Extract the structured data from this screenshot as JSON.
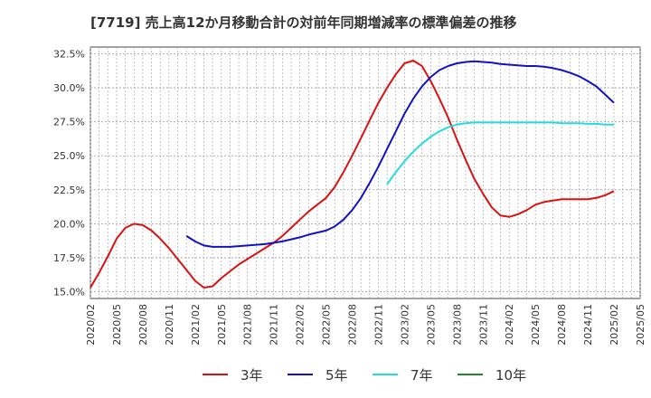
{
  "chart_data": {
    "type": "line",
    "title": "[7719]  売上高12か月移動合計の対前年同期増減率の標準偏差の推移",
    "xlabel": "",
    "ylabel": "",
    "ylim": [
      14.5,
      33.0
    ],
    "grid": true,
    "legend_position": "bottom",
    "y_ticks": [
      "32.5%",
      "30.0%",
      "27.5%",
      "25.0%",
      "22.5%",
      "20.0%",
      "17.5%",
      "15.0%"
    ],
    "y_tick_values": [
      32.5,
      30.0,
      27.5,
      25.0,
      22.5,
      20.0,
      17.5,
      15.0
    ],
    "x_ticks": [
      "2020/02",
      "2020/05",
      "2020/08",
      "2020/11",
      "2021/02",
      "2021/05",
      "2021/08",
      "2021/11",
      "2022/02",
      "2022/05",
      "2022/08",
      "2022/11",
      "2023/02",
      "2023/05",
      "2023/08",
      "2023/11",
      "2024/02",
      "2024/05",
      "2024/08",
      "2024/11",
      "2025/02",
      "2025/05"
    ],
    "x_start": "2020/02",
    "x_end": "2025/05",
    "series": [
      {
        "name": "3年",
        "color": "#dd1111",
        "points": [
          [
            "2020/02",
            15.3
          ],
          [
            "2020/03",
            16.4
          ],
          [
            "2020/04",
            17.6
          ],
          [
            "2020/05",
            18.9
          ],
          [
            "2020/06",
            19.7
          ],
          [
            "2020/07",
            20.0
          ],
          [
            "2020/08",
            19.9
          ],
          [
            "2020/09",
            19.5
          ],
          [
            "2020/10",
            18.9
          ],
          [
            "2020/11",
            18.2
          ],
          [
            "2020/12",
            17.4
          ],
          [
            "2021/01",
            16.6
          ],
          [
            "2021/02",
            15.8
          ],
          [
            "2021/03",
            15.3
          ],
          [
            "2021/04",
            15.4
          ],
          [
            "2021/05",
            16.0
          ],
          [
            "2021/06",
            16.5
          ],
          [
            "2021/07",
            17.0
          ],
          [
            "2021/08",
            17.4
          ],
          [
            "2021/09",
            17.8
          ],
          [
            "2021/10",
            18.2
          ],
          [
            "2021/11",
            18.6
          ],
          [
            "2021/12",
            19.1
          ],
          [
            "2022/01",
            19.7
          ],
          [
            "2022/02",
            20.3
          ],
          [
            "2022/03",
            20.9
          ],
          [
            "2022/04",
            21.4
          ],
          [
            "2022/05",
            21.9
          ],
          [
            "2022/06",
            22.7
          ],
          [
            "2022/07",
            23.8
          ],
          [
            "2022/08",
            25.0
          ],
          [
            "2022/09",
            26.3
          ],
          [
            "2022/10",
            27.6
          ],
          [
            "2022/11",
            28.9
          ],
          [
            "2022/12",
            30.0
          ],
          [
            "2023/01",
            31.0
          ],
          [
            "2023/02",
            31.8
          ],
          [
            "2023/03",
            32.0
          ],
          [
            "2023/04",
            31.6
          ],
          [
            "2023/05",
            30.5
          ],
          [
            "2023/06",
            29.2
          ],
          [
            "2023/07",
            27.8
          ],
          [
            "2023/08",
            26.2
          ],
          [
            "2023/09",
            24.7
          ],
          [
            "2023/10",
            23.3
          ],
          [
            "2023/11",
            22.2
          ],
          [
            "2023/12",
            21.2
          ],
          [
            "2024/01",
            20.6
          ],
          [
            "2024/02",
            20.5
          ],
          [
            "2024/03",
            20.7
          ],
          [
            "2024/04",
            21.0
          ],
          [
            "2024/05",
            21.4
          ],
          [
            "2024/06",
            21.6
          ],
          [
            "2024/07",
            21.7
          ],
          [
            "2024/08",
            21.8
          ],
          [
            "2024/09",
            21.8
          ],
          [
            "2024/10",
            21.8
          ],
          [
            "2024/11",
            21.8
          ],
          [
            "2024/12",
            21.9
          ],
          [
            "2025/01",
            22.1
          ],
          [
            "2025/02",
            22.4
          ]
        ]
      },
      {
        "name": "5年",
        "color": "#1111cc",
        "points": [
          [
            "2021/01",
            19.1
          ],
          [
            "2021/02",
            18.7
          ],
          [
            "2021/03",
            18.4
          ],
          [
            "2021/04",
            18.3
          ],
          [
            "2021/05",
            18.3
          ],
          [
            "2021/06",
            18.3
          ],
          [
            "2021/07",
            18.35
          ],
          [
            "2021/08",
            18.4
          ],
          [
            "2021/09",
            18.45
          ],
          [
            "2021/10",
            18.5
          ],
          [
            "2021/11",
            18.6
          ],
          [
            "2021/12",
            18.7
          ],
          [
            "2022/01",
            18.85
          ],
          [
            "2022/02",
            19.0
          ],
          [
            "2022/03",
            19.2
          ],
          [
            "2022/04",
            19.35
          ],
          [
            "2022/05",
            19.5
          ],
          [
            "2022/06",
            19.8
          ],
          [
            "2022/07",
            20.3
          ],
          [
            "2022/08",
            21.0
          ],
          [
            "2022/09",
            21.9
          ],
          [
            "2022/10",
            23.0
          ],
          [
            "2022/11",
            24.2
          ],
          [
            "2022/12",
            25.5
          ],
          [
            "2023/01",
            26.8
          ],
          [
            "2023/02",
            28.1
          ],
          [
            "2023/03",
            29.2
          ],
          [
            "2023/04",
            30.1
          ],
          [
            "2023/05",
            30.8
          ],
          [
            "2023/06",
            31.3
          ],
          [
            "2023/07",
            31.6
          ],
          [
            "2023/08",
            31.8
          ],
          [
            "2023/09",
            31.9
          ],
          [
            "2023/10",
            31.95
          ],
          [
            "2023/11",
            31.9
          ],
          [
            "2023/12",
            31.85
          ],
          [
            "2024/01",
            31.75
          ],
          [
            "2024/02",
            31.7
          ],
          [
            "2024/03",
            31.65
          ],
          [
            "2024/04",
            31.6
          ],
          [
            "2024/05",
            31.6
          ],
          [
            "2024/06",
            31.55
          ],
          [
            "2024/07",
            31.45
          ],
          [
            "2024/08",
            31.3
          ],
          [
            "2024/09",
            31.1
          ],
          [
            "2024/10",
            30.85
          ],
          [
            "2024/11",
            30.5
          ],
          [
            "2024/12",
            30.1
          ],
          [
            "2025/01",
            29.5
          ],
          [
            "2025/02",
            28.9
          ]
        ]
      },
      {
        "name": "7年",
        "color": "#22dddd",
        "points": [
          [
            "2022/12",
            22.9
          ],
          [
            "2023/01",
            23.8
          ],
          [
            "2023/02",
            24.6
          ],
          [
            "2023/03",
            25.3
          ],
          [
            "2023/04",
            25.9
          ],
          [
            "2023/05",
            26.4
          ],
          [
            "2023/06",
            26.8
          ],
          [
            "2023/07",
            27.1
          ],
          [
            "2023/08",
            27.3
          ],
          [
            "2023/09",
            27.4
          ],
          [
            "2023/10",
            27.45
          ],
          [
            "2023/11",
            27.45
          ],
          [
            "2023/12",
            27.45
          ],
          [
            "2024/01",
            27.45
          ],
          [
            "2024/02",
            27.45
          ],
          [
            "2024/03",
            27.45
          ],
          [
            "2024/04",
            27.45
          ],
          [
            "2024/05",
            27.45
          ],
          [
            "2024/06",
            27.45
          ],
          [
            "2024/07",
            27.45
          ],
          [
            "2024/08",
            27.4
          ],
          [
            "2024/09",
            27.4
          ],
          [
            "2024/10",
            27.4
          ],
          [
            "2024/11",
            27.35
          ],
          [
            "2024/12",
            27.35
          ],
          [
            "2025/01",
            27.3
          ],
          [
            "2025/02",
            27.3
          ]
        ]
      },
      {
        "name": "10年",
        "color": "#228822",
        "points": []
      }
    ]
  }
}
